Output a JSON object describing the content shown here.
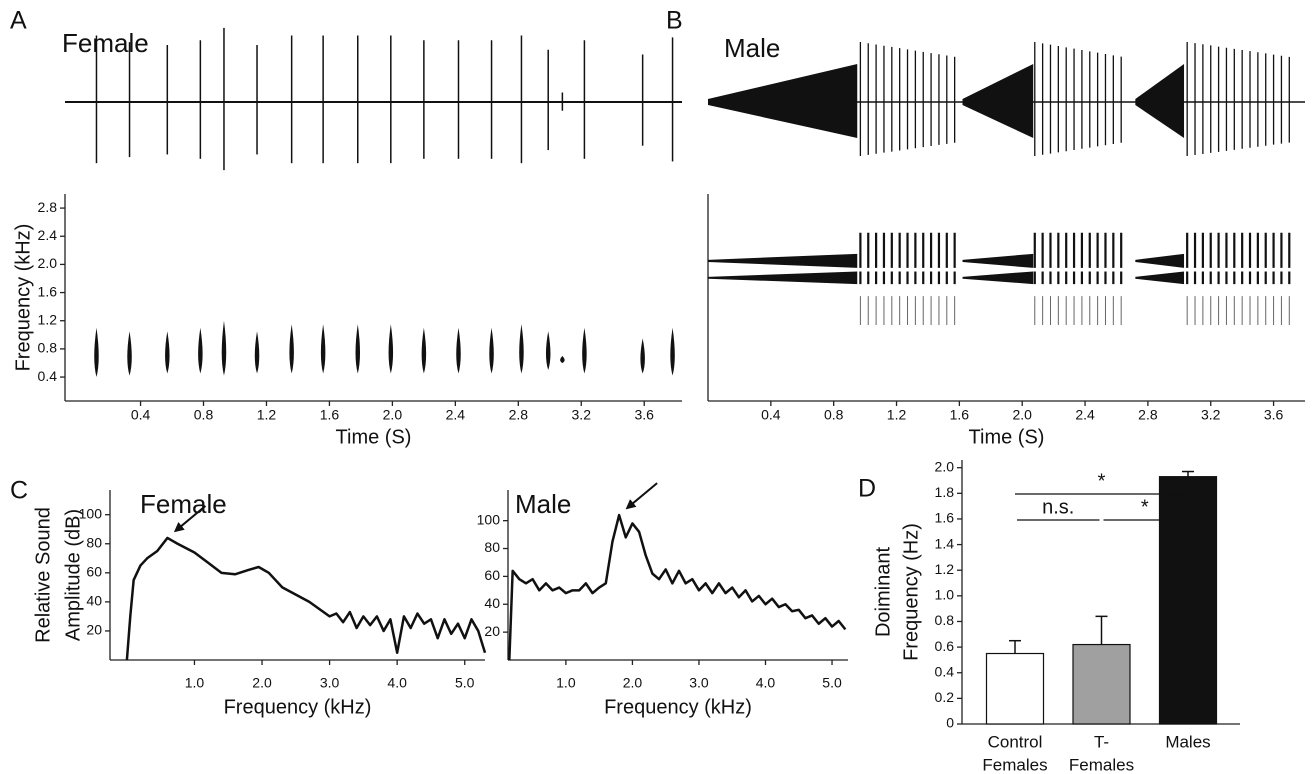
{
  "chart_data": [
    {
      "type": "spectrogram-pulses",
      "panel": "A",
      "title": "Female",
      "x": [
        0.12,
        0.33,
        0.57,
        0.78,
        0.93,
        1.14,
        1.36,
        1.56,
        1.78,
        1.99,
        2.2,
        2.42,
        2.63,
        2.82,
        2.99,
        3.08,
        3.22,
        3.59,
        3.78
      ],
      "top": [
        1.1,
        1.05,
        1.05,
        1.1,
        1.2,
        1.05,
        1.15,
        1.15,
        1.15,
        1.15,
        1.1,
        1.1,
        1.1,
        1.15,
        1.05,
        0.7,
        1.1,
        0.95,
        1.1
      ],
      "bottom": [
        0.4,
        0.42,
        0.45,
        0.45,
        0.42,
        0.45,
        0.45,
        0.45,
        0.45,
        0.45,
        0.45,
        0.45,
        0.45,
        0.45,
        0.5,
        0.6,
        0.45,
        0.45,
        0.42
      ],
      "color": "#111111",
      "xlim": [
        -0.08,
        3.84
      ],
      "ylim": [
        0.06,
        3.0
      ],
      "xticks": [
        0.4,
        0.8,
        1.2,
        1.6,
        {
          "value": 2,
          "label": "2.0"
        },
        2.4,
        2.8,
        3.2,
        3.6
      ],
      "yticks": [
        0.4,
        0.8,
        1.2,
        1.6,
        {
          "value": 2,
          "label": "2.0"
        },
        2.4,
        2.8
      ],
      "xlabel": "Time (S)",
      "ylabel": "Frequency (kHz)"
    },
    {
      "type": "spectrogram-bouts",
      "panel": "B",
      "title": "Male",
      "bouts": [
        {
          "buildup": [
            0.0,
            0.95
          ],
          "train": [
            0.97,
            1.6
          ]
        },
        {
          "buildup": [
            1.62,
            2.07
          ],
          "train": [
            2.08,
            2.65
          ]
        },
        {
          "buildup": [
            2.72,
            3.03
          ],
          "train": [
            3.05,
            3.72
          ]
        }
      ],
      "pulse_interval": 0.05,
      "buildup_bands": [
        [
          1.72,
          1.9
        ],
        [
          1.95,
          2.15
        ]
      ],
      "train_bands": [
        [
          1.95,
          2.45
        ],
        [
          1.72,
          1.9
        ],
        [
          1.14,
          1.55
        ]
      ],
      "color": "#111111",
      "xlim": [
        0,
        3.8
      ],
      "ylim": [
        0.06,
        3.0
      ],
      "xticks": [
        0.4,
        0.8,
        1.2,
        1.6,
        {
          "value": 2,
          "label": "2.0"
        },
        2.4,
        2.8,
        3.2,
        3.6
      ],
      "xlabel": "Time (S)"
    },
    {
      "type": "line",
      "panel": "C",
      "title": "Female",
      "x": [
        0,
        0.05,
        0.1,
        0.2,
        0.3,
        0.45,
        0.6,
        0.75,
        1.0,
        1.2,
        1.4,
        1.6,
        1.8,
        1.95,
        2.1,
        2.3,
        2.5,
        2.7,
        2.85,
        3.0,
        3.1,
        3.2,
        3.3,
        3.4,
        3.5,
        3.6,
        3.7,
        3.8,
        3.9,
        4.0,
        4.1,
        4.2,
        4.3,
        4.4,
        4.5,
        4.6,
        4.7,
        4.8,
        4.9,
        5.0,
        5.1,
        5.2,
        5.3
      ],
      "values": [
        0,
        30,
        55,
        65,
        70,
        75,
        84,
        80,
        74,
        67,
        60,
        59,
        62,
        64,
        60,
        50,
        45,
        40,
        35,
        30,
        32,
        26,
        33,
        22,
        30,
        24,
        30,
        20,
        28,
        5,
        30,
        22,
        32,
        25,
        28,
        15,
        28,
        18,
        25,
        15,
        28,
        20,
        5
      ],
      "color": "#111111",
      "xlim": [
        -0.25,
        5.3
      ],
      "ylim": [
        0,
        117
      ],
      "xticks": [
        {
          "value": 1,
          "label": "1.0"
        },
        {
          "value": 2,
          "label": "2.0"
        },
        {
          "value": 3,
          "label": "3.0"
        },
        {
          "value": 4,
          "label": "4.0"
        },
        {
          "value": 5,
          "label": "5.0"
        }
      ],
      "yticks": [
        20,
        40,
        60,
        80,
        100
      ],
      "xlabel": "Frequency (kHz)",
      "ylabel": [
        "Relative Sound",
        "Amplitude (dB)"
      ]
    },
    {
      "type": "line",
      "title": "Male",
      "x": [
        0.15,
        0.2,
        0.3,
        0.4,
        0.5,
        0.6,
        0.7,
        0.8,
        0.9,
        1.0,
        1.1,
        1.2,
        1.3,
        1.4,
        1.5,
        1.6,
        1.7,
        1.8,
        1.9,
        2.0,
        2.1,
        2.2,
        2.3,
        2.4,
        2.5,
        2.6,
        2.7,
        2.8,
        2.9,
        3.0,
        3.1,
        3.2,
        3.3,
        3.4,
        3.5,
        3.6,
        3.7,
        3.8,
        3.9,
        4.0,
        4.1,
        4.2,
        4.3,
        4.4,
        4.5,
        4.6,
        4.7,
        4.8,
        4.9,
        5.0,
        5.1,
        5.2
      ],
      "values": [
        0,
        64,
        58,
        55,
        58,
        50,
        55,
        50,
        52,
        48,
        50,
        50,
        55,
        48,
        52,
        55,
        85,
        104,
        88,
        98,
        92,
        75,
        62,
        58,
        65,
        55,
        64,
        55,
        58,
        50,
        55,
        48,
        55,
        48,
        52,
        45,
        50,
        42,
        46,
        40,
        44,
        38,
        40,
        35,
        36,
        30,
        32,
        26,
        30,
        24,
        28,
        22
      ],
      "color": "#111111",
      "xlim": [
        0.13,
        5.24
      ],
      "ylim": [
        0,
        122
      ],
      "xticks": [
        {
          "value": 1,
          "label": "1.0"
        },
        {
          "value": 2,
          "label": "2.0"
        },
        {
          "value": 3,
          "label": "3.0"
        },
        {
          "value": 4,
          "label": "4.0"
        },
        {
          "value": 5,
          "label": "5.0"
        }
      ],
      "yticks": [
        20,
        40,
        60,
        80,
        100
      ],
      "xlabel": "Frequency (kHz)"
    },
    {
      "type": "bar",
      "panel": "D",
      "categories": [
        [
          "Control",
          "Females"
        ],
        [
          "T-",
          "Females"
        ],
        [
          "Males"
        ]
      ],
      "values": [
        0.55,
        0.62,
        1.93
      ],
      "errors": [
        0.1,
        0.22,
        0.04
      ],
      "colors": [
        "#ffffff",
        "#a0a0a0",
        "#111111"
      ],
      "ylim": [
        0,
        2.06
      ],
      "yticks": [
        0,
        0.2,
        0.4,
        0.6,
        0.8,
        {
          "value": 1,
          "label": "1.0"
        },
        1.2,
        1.4,
        1.6,
        1.8,
        {
          "value": 2,
          "label": "2.0"
        }
      ],
      "ylabel": [
        "Doiminant",
        "Frequency (Hz)"
      ],
      "significance": [
        {
          "from": 0,
          "to": 2,
          "label": "*"
        },
        {
          "from": 0,
          "to": 1,
          "label": "n.s."
        },
        {
          "from": 1,
          "to": 2,
          "label": "*"
        }
      ]
    }
  ]
}
